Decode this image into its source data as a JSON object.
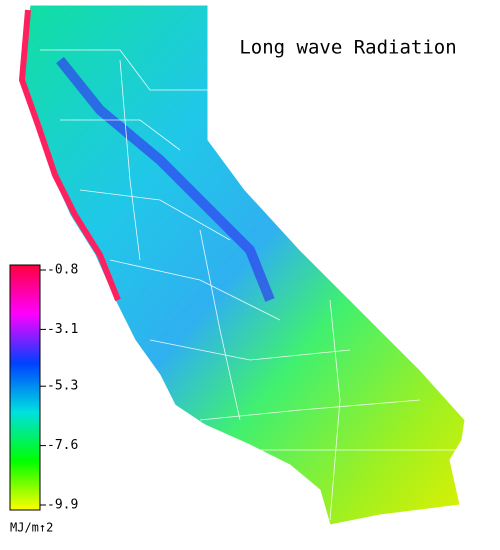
{
  "title": "Long wave Radiation",
  "colorbar": {
    "ticks": [
      -0.8,
      -3.1,
      -5.3,
      -7.6,
      -9.9
    ],
    "lim": [
      -9.9,
      -0.8
    ],
    "unit": "MJ/m↑2",
    "colors": [
      "#ffff00",
      "#00ff00",
      "#00e0e0",
      "#0040ff",
      "#ff00ff",
      "#ff0040"
    ]
  }
}
